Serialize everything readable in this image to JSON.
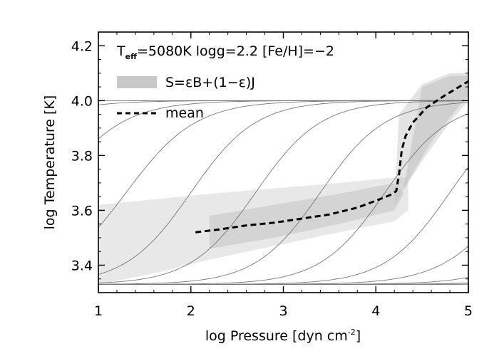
{
  "chart_data": {
    "type": "line",
    "xlabel": {
      "main": "log Pressure [dyn cm",
      "sup": "-2",
      "end": "]"
    },
    "ylabel": "log Temperature [K]",
    "xlim": [
      1,
      5
    ],
    "ylim": [
      3.3,
      4.25
    ],
    "x_ticks": [
      1,
      2,
      3,
      4,
      5
    ],
    "x_tick_labels": [
      "1",
      "2",
      "3",
      "4",
      "5"
    ],
    "y_ticks": [
      3.4,
      3.6,
      3.8,
      4.0,
      4.2
    ],
    "y_tick_labels": [
      "3.4",
      "3.6",
      "3.8",
      "4.0",
      "4.2"
    ],
    "annotation": {
      "t": "T",
      "sub": "eff",
      "rest": "=5080K  logg=2.2  [Fe/H]=−2"
    },
    "legend": [
      {
        "label": "S=εB+(1−ε)J",
        "style": "gray-band",
        "color": "#c8c8c8"
      },
      {
        "label": "mean",
        "style": "dashed",
        "color": "#000000"
      }
    ],
    "series": [
      {
        "name": "mean",
        "style": "dashed",
        "x": [
          2.05,
          2.3,
          2.6,
          2.9,
          3.2,
          3.5,
          3.8,
          4.0,
          4.15,
          4.22,
          4.25,
          4.28,
          4.32,
          4.4,
          4.55,
          4.75,
          4.9,
          5.0
        ],
        "y": [
          3.52,
          3.53,
          3.545,
          3.555,
          3.57,
          3.585,
          3.61,
          3.635,
          3.655,
          3.67,
          3.73,
          3.82,
          3.87,
          3.92,
          3.975,
          4.02,
          4.05,
          4.07
        ]
      }
    ],
    "contour_lines": {
      "color": "#777777",
      "low_asymptote": 3.33,
      "high_asymptote": 4.0,
      "centers": [
        -1.5,
        -0.5,
        0.5,
        1.3,
        2.0,
        2.7,
        3.4,
        4.1,
        4.8,
        5.5,
        6.2,
        6.9,
        7.6,
        8.3
      ],
      "widths": [
        1.6,
        1.6,
        1.5,
        1.5,
        1.4,
        1.4,
        1.4,
        1.4,
        1.4,
        1.5,
        1.5,
        1.6,
        1.6,
        1.7
      ]
    },
    "density": {
      "color": "#bcbcbc",
      "regions": [
        {
          "x": [
            1.0,
            1.6,
            2.2,
            2.9,
            3.6,
            4.2,
            4.35,
            4.35,
            4.2,
            3.6,
            2.9,
            2.2,
            1.6,
            1.0
          ],
          "y": [
            3.33,
            3.37,
            3.42,
            3.47,
            3.52,
            3.56,
            3.6,
            3.72,
            3.72,
            3.7,
            3.68,
            3.66,
            3.64,
            3.62
          ],
          "opacity": 0.35
        },
        {
          "x": [
            2.2,
            2.9,
            3.6,
            4.2,
            4.3,
            4.2,
            3.6,
            2.9,
            2.2
          ],
          "y": [
            3.46,
            3.5,
            3.55,
            3.6,
            3.66,
            3.7,
            3.66,
            3.62,
            3.58
          ],
          "opacity": 0.45
        },
        {
          "x": [
            4.2,
            4.5,
            4.8,
            5.0,
            5.0,
            4.8,
            4.5,
            4.25
          ],
          "y": [
            3.62,
            3.78,
            3.92,
            4.0,
            4.1,
            4.1,
            4.06,
            3.95
          ],
          "opacity": 0.4
        },
        {
          "x": [
            4.3,
            4.6,
            4.9,
            5.0,
            5.0,
            4.8,
            4.5
          ],
          "y": [
            3.68,
            3.85,
            3.98,
            4.02,
            4.09,
            4.09,
            4.05
          ],
          "opacity": 0.5
        }
      ]
    }
  }
}
